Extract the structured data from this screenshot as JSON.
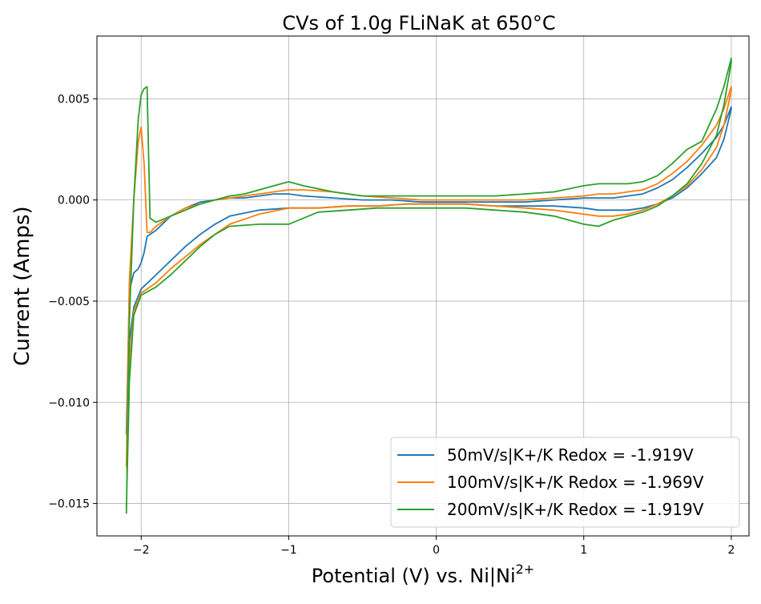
{
  "chart_data": {
    "type": "line",
    "title": "CVs of 1.0g FLiNaK at 650°C",
    "xlabel_prefix": "Potential (V) vs. Ni|Ni",
    "xlabel_sup": "2+",
    "ylabel": "Current (Amps)",
    "xlim": [
      -2.3,
      2.12
    ],
    "ylim": [
      -0.0166,
      0.0081
    ],
    "xticks": [
      -2,
      -1,
      0,
      1,
      2
    ],
    "xtick_labels": [
      "−2",
      "−1",
      "0",
      "1",
      "2"
    ],
    "yticks": [
      -0.015,
      -0.01,
      -0.005,
      0.0,
      0.005
    ],
    "ytick_labels": [
      "−0.015",
      "−0.010",
      "−0.005",
      "0.000",
      "0.005"
    ],
    "grid": true,
    "legend_position": "lower-right",
    "series": [
      {
        "name": "50mV/s|K+/K Redox = -1.919V",
        "color": "#1f77b4",
        "x": [
          -2.1,
          -2.08,
          -2.05,
          -2.02,
          -2.0,
          -1.98,
          -1.96,
          -1.94,
          -1.9,
          -1.8,
          -1.7,
          -1.6,
          -1.5,
          -1.4,
          -1.3,
          -1.2,
          -1.1,
          -1.0,
          -0.9,
          -0.7,
          -0.5,
          -0.3,
          -0.1,
          0.0,
          0.2,
          0.4,
          0.6,
          0.8,
          1.0,
          1.1,
          1.2,
          1.3,
          1.4,
          1.5,
          1.6,
          1.7,
          1.8,
          1.9,
          1.95,
          2.0,
          2.0,
          1.95,
          1.9,
          1.8,
          1.7,
          1.6,
          1.5,
          1.4,
          1.3,
          1.2,
          1.1,
          1.0,
          0.8,
          0.6,
          0.4,
          0.2,
          0.0,
          -0.2,
          -0.4,
          -0.6,
          -0.8,
          -1.0,
          -1.2,
          -1.4,
          -1.5,
          -1.6,
          -1.7,
          -1.8,
          -1.9,
          -2.0,
          -2.05,
          -2.08,
          -2.1
        ],
        "y": [
          -0.0115,
          -0.0045,
          -0.0036,
          -0.0034,
          -0.0031,
          -0.0026,
          -0.0018,
          -0.0017,
          -0.0015,
          -0.0008,
          -0.0004,
          -0.0001,
          0.0,
          0.0001,
          0.0001,
          0.0002,
          0.0003,
          0.0003,
          0.0002,
          0.0001,
          0.0,
          0.0,
          -0.0001,
          -0.0001,
          -0.0001,
          -0.0001,
          -0.0001,
          0.0,
          0.0001,
          0.0001,
          0.0001,
          0.0002,
          0.0003,
          0.0006,
          0.001,
          0.0016,
          0.0023,
          0.0031,
          0.0037,
          0.0046,
          0.0045,
          0.003,
          0.0021,
          0.0013,
          0.0006,
          0.0001,
          -0.0002,
          -0.0004,
          -0.0005,
          -0.0005,
          -0.0005,
          -0.0004,
          -0.0003,
          -0.0003,
          -0.0003,
          -0.0002,
          -0.0002,
          -0.0002,
          -0.0003,
          -0.0003,
          -0.0004,
          -0.0004,
          -0.0005,
          -0.0008,
          -0.0012,
          -0.0017,
          -0.0023,
          -0.003,
          -0.0037,
          -0.0044,
          -0.0053,
          -0.007,
          -0.0116
        ]
      },
      {
        "name": "100mV/s|K+/K Redox = -1.969V",
        "color": "#ff7f0e",
        "x": [
          -2.1,
          -2.08,
          -2.05,
          -2.02,
          -2.0,
          -1.98,
          -1.96,
          -1.94,
          -1.9,
          -1.8,
          -1.7,
          -1.6,
          -1.5,
          -1.4,
          -1.3,
          -1.2,
          -1.1,
          -1.0,
          -0.9,
          -0.7,
          -0.5,
          -0.3,
          -0.1,
          0.0,
          0.2,
          0.4,
          0.6,
          0.8,
          1.0,
          1.1,
          1.2,
          1.3,
          1.4,
          1.5,
          1.6,
          1.7,
          1.8,
          1.9,
          1.95,
          2.0,
          2.0,
          1.95,
          1.9,
          1.8,
          1.7,
          1.6,
          1.5,
          1.4,
          1.3,
          1.2,
          1.1,
          1.0,
          0.8,
          0.6,
          0.4,
          0.2,
          0.0,
          -0.2,
          -0.4,
          -0.6,
          -0.8,
          -1.0,
          -1.2,
          -1.4,
          -1.5,
          -1.6,
          -1.7,
          -1.8,
          -1.9,
          -2.0,
          -2.05,
          -2.08,
          -2.1
        ],
        "y": [
          -0.0132,
          -0.004,
          0.0,
          0.0029,
          0.0036,
          0.0018,
          -0.0016,
          -0.0016,
          -0.0013,
          -0.0008,
          -0.0004,
          -0.0002,
          0.0,
          0.0001,
          0.0002,
          0.0003,
          0.0004,
          0.0005,
          0.0005,
          0.0004,
          0.0002,
          0.0001,
          0.0,
          0.0,
          0.0,
          0.0,
          0.0,
          0.0001,
          0.0002,
          0.0003,
          0.0003,
          0.0004,
          0.0005,
          0.0008,
          0.0013,
          0.0019,
          0.0027,
          0.0037,
          0.0045,
          0.0056,
          0.0054,
          0.0037,
          0.0026,
          0.0015,
          0.0007,
          0.0002,
          -0.0002,
          -0.0005,
          -0.0007,
          -0.0008,
          -0.0008,
          -0.0007,
          -0.0005,
          -0.0004,
          -0.0003,
          -0.0002,
          -0.0002,
          -0.0002,
          -0.0003,
          -0.0003,
          -0.0004,
          -0.0004,
          -0.0007,
          -0.0012,
          -0.0017,
          -0.0022,
          -0.0028,
          -0.0034,
          -0.0041,
          -0.0046,
          -0.0055,
          -0.008,
          -0.0131
        ]
      },
      {
        "name": "200mV/s|K+/K Redox = -1.919V",
        "color": "#2ca02c",
        "x": [
          -2.1,
          -2.08,
          -2.05,
          -2.02,
          -2.0,
          -1.98,
          -1.96,
          -1.94,
          -1.9,
          -1.8,
          -1.7,
          -1.6,
          -1.5,
          -1.4,
          -1.3,
          -1.2,
          -1.1,
          -1.0,
          -0.9,
          -0.7,
          -0.5,
          -0.3,
          -0.1,
          0.0,
          0.2,
          0.4,
          0.6,
          0.8,
          1.0,
          1.1,
          1.2,
          1.3,
          1.4,
          1.5,
          1.6,
          1.7,
          1.8,
          1.9,
          1.95,
          2.0,
          2.0,
          1.95,
          1.9,
          1.8,
          1.7,
          1.6,
          1.5,
          1.4,
          1.3,
          1.2,
          1.1,
          1.0,
          0.8,
          0.6,
          0.4,
          0.2,
          0.0,
          -0.2,
          -0.4,
          -0.6,
          -0.8,
          -1.0,
          -1.2,
          -1.4,
          -1.5,
          -1.6,
          -1.7,
          -1.8,
          -1.9,
          -2.0,
          -2.05,
          -2.08,
          -2.1
        ],
        "y": [
          -0.0155,
          -0.006,
          0.0,
          0.004,
          0.0052,
          0.0055,
          0.0056,
          -0.0009,
          -0.0011,
          -0.0008,
          -0.0005,
          -0.0002,
          0.0,
          0.0002,
          0.0003,
          0.0005,
          0.0007,
          0.0009,
          0.0007,
          0.0004,
          0.0002,
          0.0002,
          0.0002,
          0.0002,
          0.0002,
          0.0002,
          0.0003,
          0.0004,
          0.0007,
          0.0008,
          0.0008,
          0.0008,
          0.0009,
          0.0012,
          0.0018,
          0.0025,
          0.0029,
          0.0045,
          0.0056,
          0.007,
          0.0068,
          0.0047,
          0.0032,
          0.0018,
          0.0008,
          0.0002,
          -0.0003,
          -0.0006,
          -0.0008,
          -0.001,
          -0.0013,
          -0.0012,
          -0.0008,
          -0.0006,
          -0.0005,
          -0.0004,
          -0.0004,
          -0.0004,
          -0.0004,
          -0.0005,
          -0.0006,
          -0.0012,
          -0.0012,
          -0.0013,
          -0.0017,
          -0.0023,
          -0.003,
          -0.0037,
          -0.0043,
          -0.0047,
          -0.0057,
          -0.009,
          -0.0152
        ]
      }
    ]
  }
}
